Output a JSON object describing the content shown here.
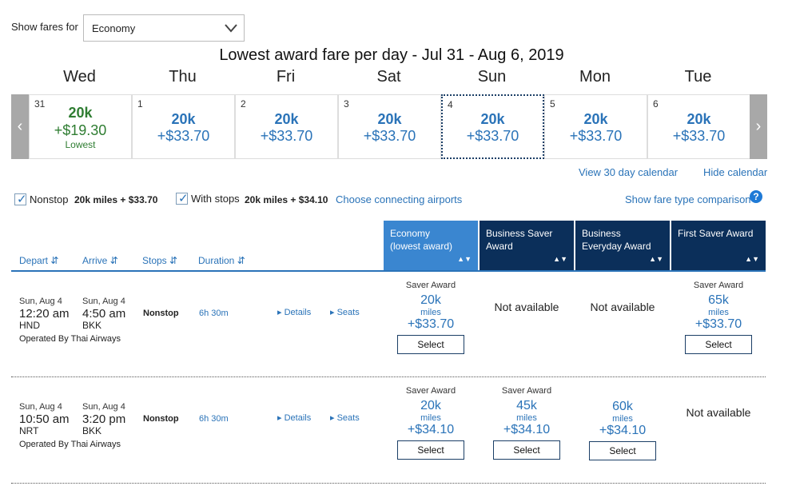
{
  "filters": {
    "show_fares_label": "Show fares for",
    "cabin_value": "Economy"
  },
  "title": "Lowest award fare per day - Jul 31 - Aug 6, 2019",
  "days": [
    {
      "name": "Wed",
      "num": "31",
      "miles": "20k",
      "price": "+$19.30",
      "note": "Lowest"
    },
    {
      "name": "Thu",
      "num": "1",
      "miles": "20k",
      "price": "+$33.70",
      "note": ""
    },
    {
      "name": "Fri",
      "num": "2",
      "miles": "20k",
      "price": "+$33.70",
      "note": ""
    },
    {
      "name": "Sat",
      "num": "3",
      "miles": "20k",
      "price": "+$33.70",
      "note": ""
    },
    {
      "name": "Sun",
      "num": "4",
      "miles": "20k",
      "price": "+$33.70",
      "note": ""
    },
    {
      "name": "Mon",
      "num": "5",
      "miles": "20k",
      "price": "+$33.70",
      "note": ""
    },
    {
      "name": "Tue",
      "num": "6",
      "miles": "20k",
      "price": "+$33.70",
      "note": ""
    }
  ],
  "calendar_links": {
    "view30": "View 30 day calendar",
    "hide": "Hide calendar"
  },
  "stops_filter": {
    "nonstop_label": "Nonstop",
    "nonstop_value": "20k miles + $33.70",
    "withstops_label": "With stops",
    "withstops_value": "20k miles + $34.10",
    "connecting_link": "Choose connecting airports",
    "compare_link": "Show fare type comparison"
  },
  "columns": {
    "depart": "Depart",
    "arrive": "Arrive",
    "stops": "Stops",
    "duration": "Duration"
  },
  "fare_columns": [
    {
      "line1": "Economy",
      "line2": "(lowest award)"
    },
    {
      "line1": "Business Saver",
      "line2": "Award"
    },
    {
      "line1": "Business",
      "line2": "Everyday Award"
    },
    {
      "line1": "First Saver Award",
      "line2": ""
    }
  ],
  "flights": [
    {
      "dep_date": "Sun, Aug 4",
      "dep_time": "12:20 am",
      "dep_airport": "HND",
      "arr_date": "Sun, Aug 4",
      "arr_time": "4:50 am",
      "arr_airport": "BKK",
      "operated": "Operated By Thai Airways",
      "stops": "Nonstop",
      "duration": "6h 30m",
      "details": "Details",
      "seats": "Seats",
      "fares": [
        {
          "type": "Saver Award",
          "miles": "20k",
          "unit": "miles",
          "price": "+$33.70",
          "button": "Select"
        },
        {
          "na": "Not available"
        },
        {
          "na": "Not available"
        },
        {
          "type": "Saver Award",
          "miles": "65k",
          "unit": "miles",
          "price": "+$33.70",
          "button": "Select"
        }
      ]
    },
    {
      "dep_date": "Sun, Aug 4",
      "dep_time": "10:50 am",
      "dep_airport": "NRT",
      "arr_date": "Sun, Aug 4",
      "arr_time": "3:20 pm",
      "arr_airport": "BKK",
      "operated": "Operated By Thai Airways",
      "stops": "Nonstop",
      "duration": "6h 30m",
      "details": "Details",
      "seats": "Seats",
      "fares": [
        {
          "type": "Saver Award",
          "miles": "20k",
          "unit": "miles",
          "price": "+$34.10",
          "button": "Select"
        },
        {
          "type": "Saver Award",
          "miles": "45k",
          "unit": "miles",
          "price": "+$34.10",
          "button": "Select"
        },
        {
          "type": "",
          "miles": "60k",
          "unit": "miles",
          "price": "+$34.10",
          "button": "Select"
        },
        {
          "na": "Not available"
        }
      ]
    }
  ],
  "colors": {
    "link_blue": "#2a73b8",
    "header_light": "#3a86d0",
    "header_dark": "#0b2f5a",
    "lowest_green": "#2f7d32"
  }
}
